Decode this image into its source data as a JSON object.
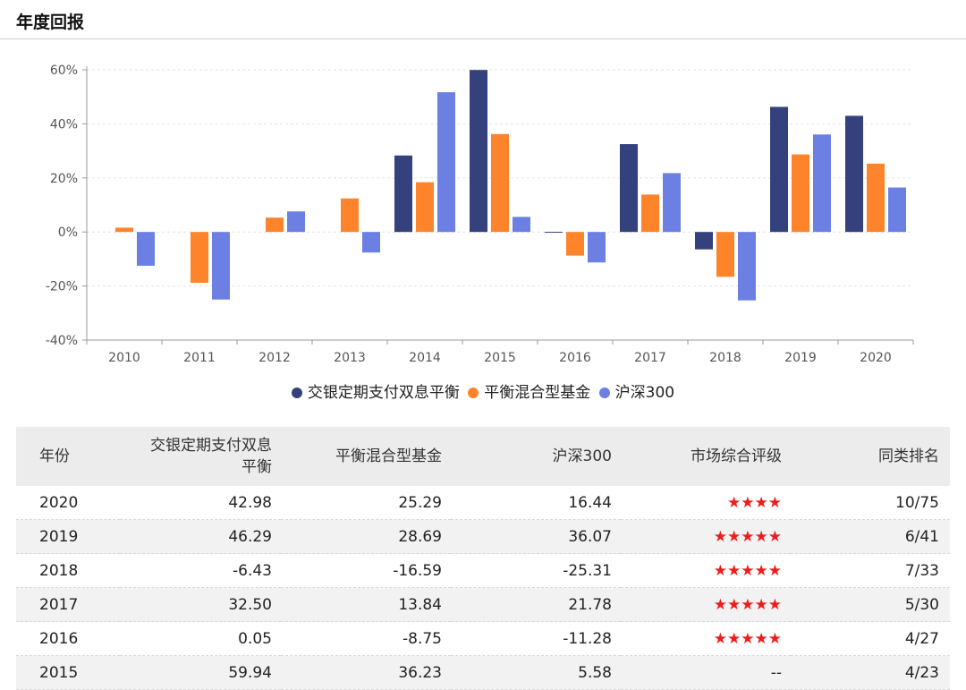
{
  "section_title": "年度回报",
  "legend": [
    {
      "name": "交银定期支付双息平衡",
      "color": "#35417c"
    },
    {
      "name": "平衡混合型基金",
      "color": "#fd842a"
    },
    {
      "name": "沪深300",
      "color": "#6b80e2"
    }
  ],
  "chart_data": {
    "type": "bar",
    "categories": [
      "2010",
      "2011",
      "2012",
      "2013",
      "2014",
      "2015",
      "2016",
      "2017",
      "2018",
      "2019",
      "2020"
    ],
    "series": [
      {
        "name": "交银定期支付双息平衡",
        "color": "#35417c",
        "values": [
          null,
          null,
          null,
          null,
          28.3,
          59.94,
          0.05,
          32.5,
          -6.43,
          46.29,
          42.98
        ]
      },
      {
        "name": "平衡混合型基金",
        "color": "#fd842a",
        "values": [
          1.6,
          -18.8,
          5.3,
          12.4,
          18.4,
          36.23,
          -8.75,
          13.84,
          -16.59,
          28.69,
          25.29
        ]
      },
      {
        "name": "沪深300",
        "color": "#6b80e2",
        "values": [
          -12.5,
          -25.0,
          7.6,
          -7.6,
          51.7,
          5.58,
          -11.28,
          21.78,
          -25.31,
          36.07,
          16.44
        ]
      }
    ],
    "ylim": [
      -40,
      60
    ],
    "yticks": [
      -40,
      -20,
      0,
      20,
      40,
      60
    ],
    "ytick_labels": [
      "-40%",
      "-20%",
      "0%",
      "20%",
      "40%",
      "60%"
    ],
    "grid": true,
    "legend_position": "bottom"
  },
  "table": {
    "headers": [
      "年份",
      "交银定期支付双息平衡",
      "平衡混合型基金",
      "沪深300",
      "市场综合评级",
      "同类排名"
    ],
    "header_wrapped": [
      "交银定期支付双息",
      "平衡"
    ],
    "rows": [
      {
        "year": "2020",
        "fund": "42.98",
        "category": "25.29",
        "index": "16.44",
        "rating": "★★★★",
        "rank": "10/75"
      },
      {
        "year": "2019",
        "fund": "46.29",
        "category": "28.69",
        "index": "36.07",
        "rating": "★★★★★",
        "rank": "6/41"
      },
      {
        "year": "2018",
        "fund": "-6.43",
        "category": "-16.59",
        "index": "-25.31",
        "rating": "★★★★★",
        "rank": "7/33"
      },
      {
        "year": "2017",
        "fund": "32.50",
        "category": "13.84",
        "index": "21.78",
        "rating": "★★★★★",
        "rank": "5/30"
      },
      {
        "year": "2016",
        "fund": "0.05",
        "category": "-8.75",
        "index": "-11.28",
        "rating": "★★★★★",
        "rank": "4/27"
      },
      {
        "year": "2015",
        "fund": "59.94",
        "category": "36.23",
        "index": "5.58",
        "rating": "--",
        "rank": "4/23"
      }
    ]
  }
}
